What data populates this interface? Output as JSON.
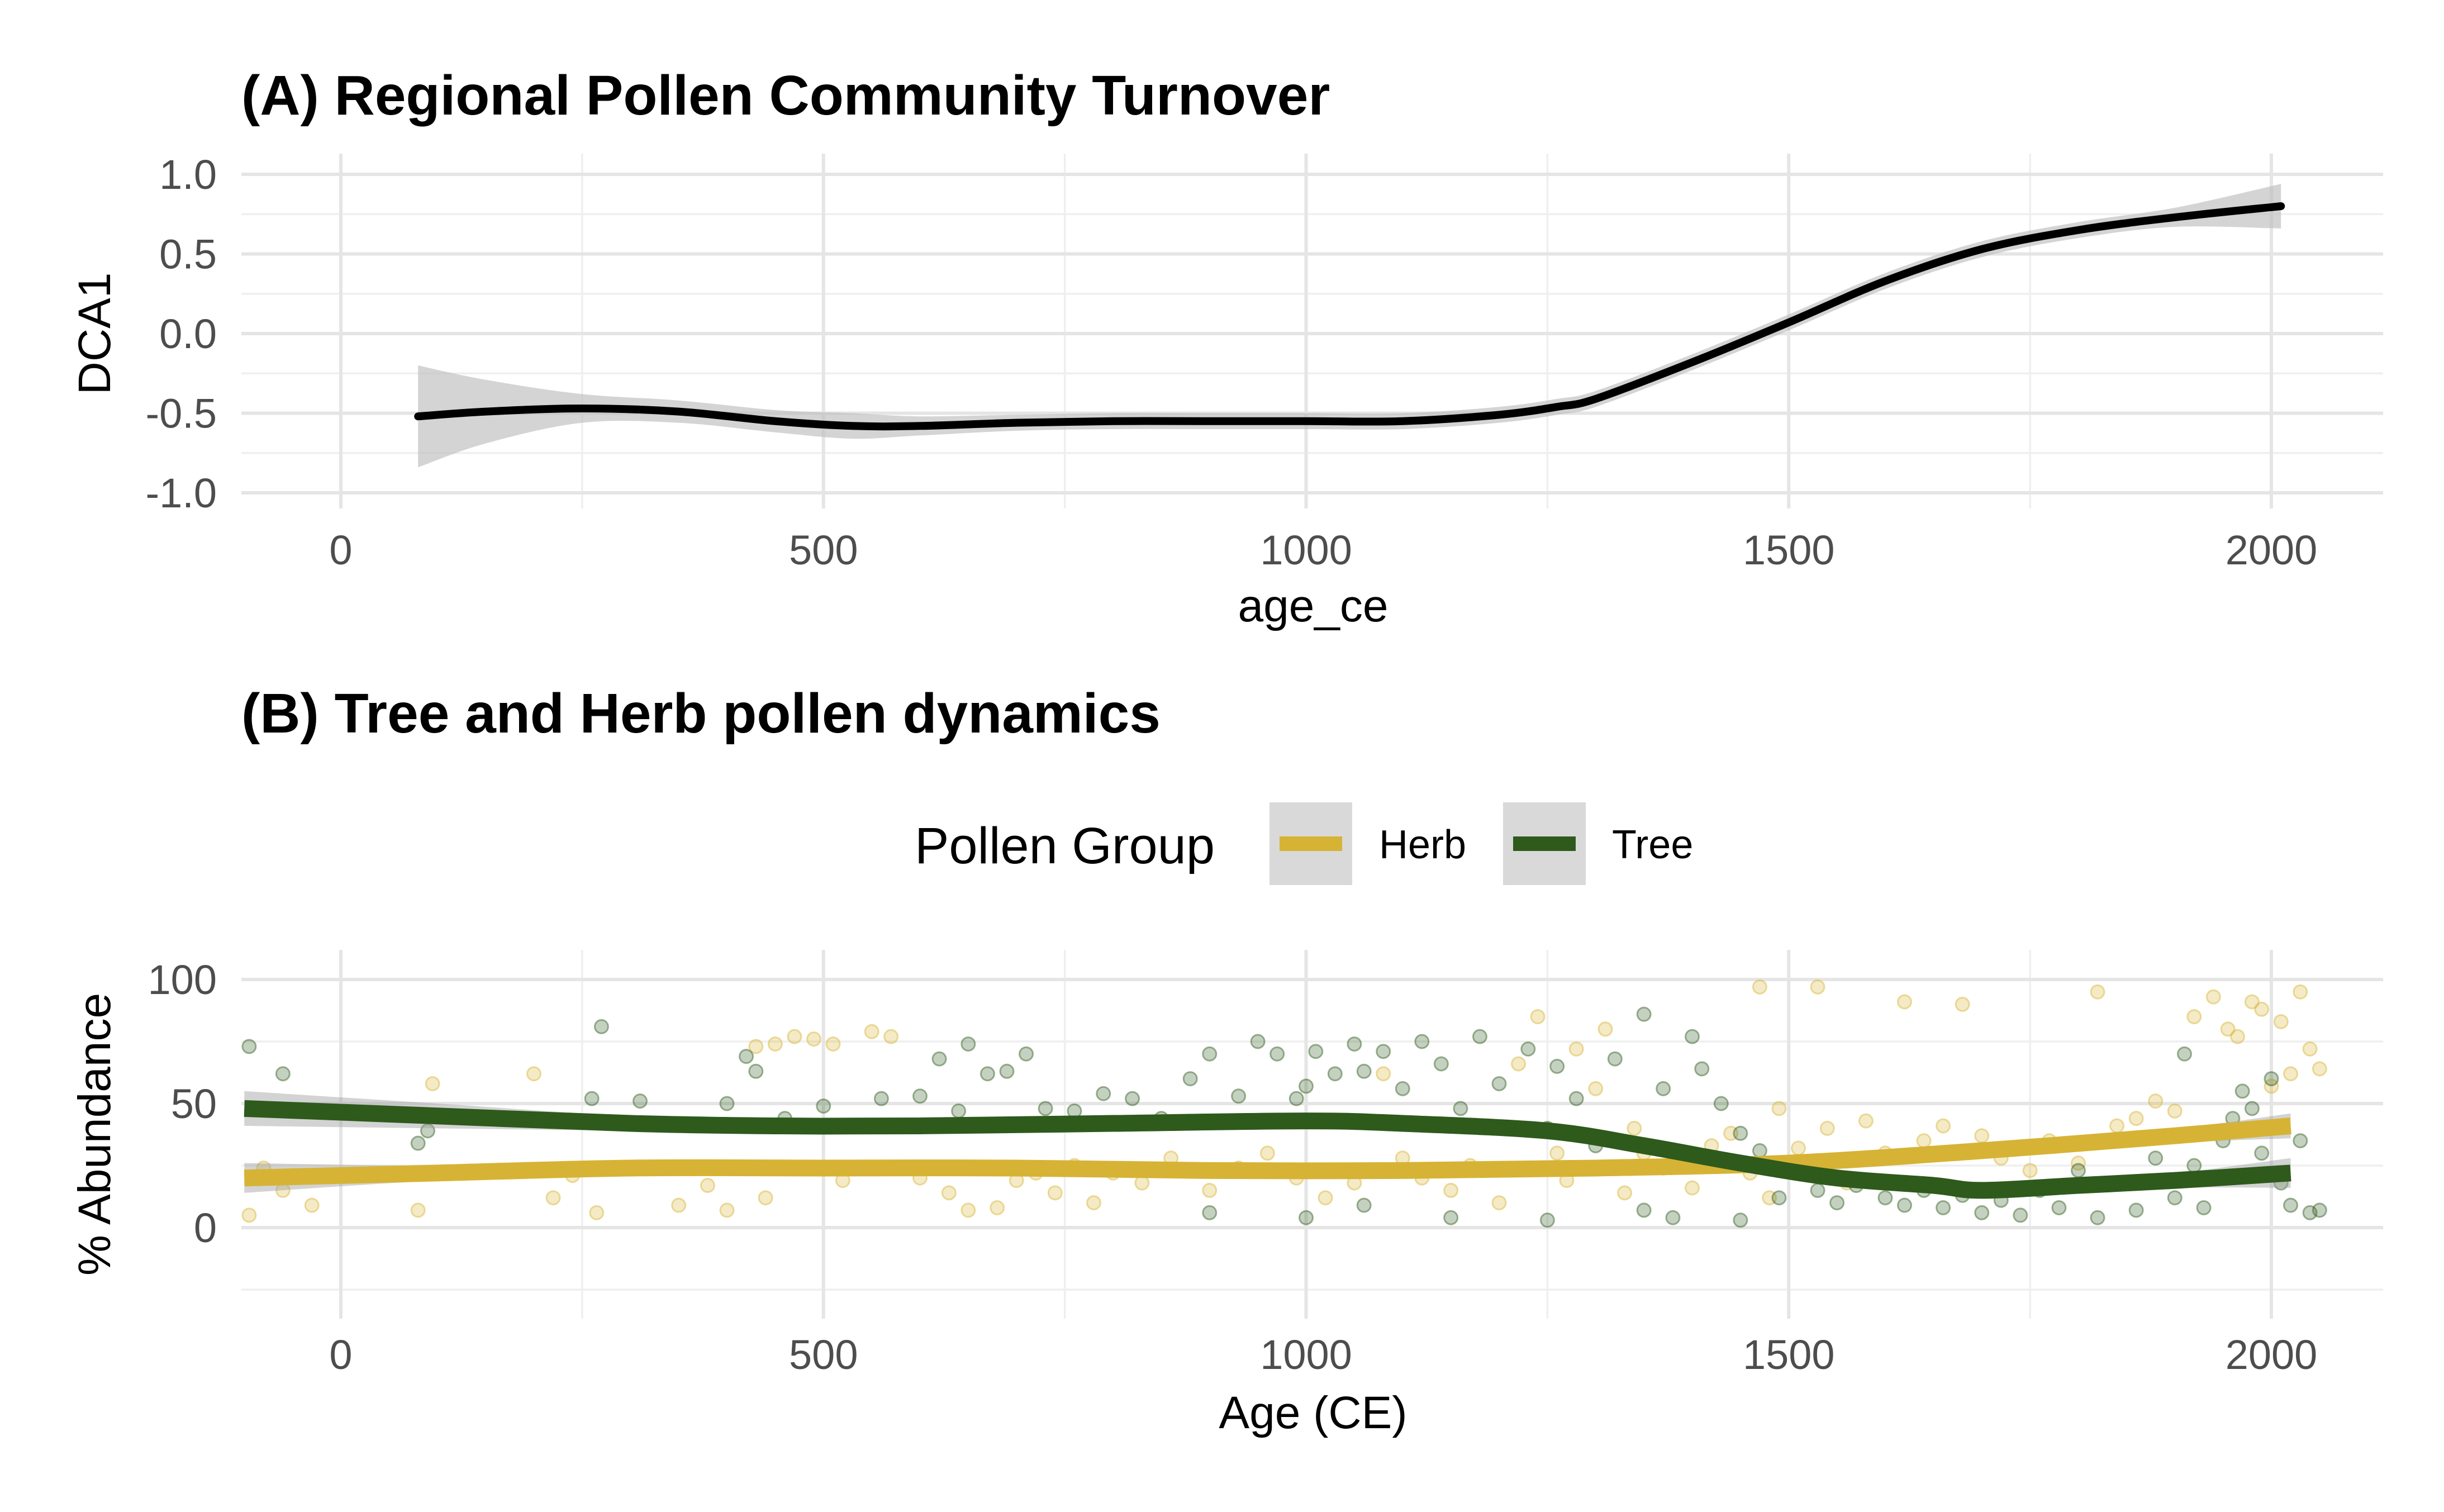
{
  "chart_data": [
    {
      "type": "line",
      "title": "(A) Regional Pollen Community Turnover",
      "xlabel": "age_ce",
      "ylabel": "DCA1",
      "xlim": [
        -100,
        2220
      ],
      "ylim": [
        -1.0,
        1.0
      ],
      "x_ticks": [
        0,
        500,
        1000,
        1500,
        2000
      ],
      "x_tick_labels": [
        "0",
        "500",
        "1000",
        "1500",
        "2000"
      ],
      "y_ticks": [
        1.0,
        0.5,
        0.0,
        -0.5,
        -1.0
      ],
      "y_tick_labels": [
        "1.0",
        "0.5",
        "0.0",
        "-0.5",
        "-1.0"
      ],
      "grid": true,
      "series": [
        {
          "color": "#000000",
          "band_color": "#bdbdbd",
          "x": [
            80,
            150,
            250,
            350,
            450,
            530,
            600,
            700,
            800,
            900,
            1000,
            1100,
            1200,
            1260,
            1300,
            1400,
            1500,
            1600,
            1700,
            1800,
            1900,
            2010
          ],
          "y": [
            -0.52,
            -0.49,
            -0.47,
            -0.49,
            -0.55,
            -0.58,
            -0.58,
            -0.56,
            -0.55,
            -0.55,
            -0.55,
            -0.55,
            -0.51,
            -0.46,
            -0.41,
            -0.18,
            0.07,
            0.33,
            0.53,
            0.65,
            0.73,
            0.8
          ],
          "lo": [
            -0.84,
            -0.69,
            -0.56,
            -0.56,
            -0.62,
            -0.66,
            -0.64,
            -0.61,
            -0.6,
            -0.6,
            -0.6,
            -0.6,
            -0.56,
            -0.51,
            -0.46,
            -0.23,
            0.02,
            0.28,
            0.48,
            0.6,
            0.67,
            0.66
          ],
          "hi": [
            -0.2,
            -0.29,
            -0.38,
            -0.42,
            -0.48,
            -0.5,
            -0.52,
            -0.51,
            -0.5,
            -0.5,
            -0.5,
            -0.5,
            -0.46,
            -0.41,
            -0.36,
            -0.13,
            0.12,
            0.38,
            0.58,
            0.7,
            0.79,
            0.94
          ]
        }
      ]
    },
    {
      "type": "scatter",
      "title": "(B) Tree and Herb pollen dynamics",
      "xlabel": "Age (CE)",
      "ylabel": "% Abundance",
      "xlim": [
        -100,
        2220
      ],
      "ylim": [
        -25,
        105
      ],
      "x_ticks": [
        0,
        500,
        1000,
        1500,
        2000
      ],
      "x_tick_labels": [
        "0",
        "500",
        "1000",
        "1500",
        "2000"
      ],
      "y_ticks": [
        100,
        50,
        0
      ],
      "y_tick_labels": [
        "100",
        "50",
        "0"
      ],
      "grid": true,
      "legend": {
        "title": "Pollen Group",
        "position": "top",
        "entries": [
          "Herb",
          "Tree"
        ]
      },
      "series": [
        {
          "name": "Herb",
          "color": "#d6b334",
          "smooth_x": [
            -100,
            100,
            300,
            500,
            700,
            900,
            1100,
            1300,
            1500,
            1700,
            1900,
            2020
          ],
          "smooth_y": [
            20,
            22,
            24,
            24,
            24,
            23,
            23,
            24,
            26,
            31,
            37,
            41
          ],
          "smooth_lo": [
            14,
            19,
            22,
            22,
            22,
            21,
            21,
            22,
            23,
            28,
            34,
            36
          ],
          "smooth_hi": [
            26,
            25,
            26,
            26,
            26,
            25,
            25,
            26,
            29,
            34,
            40,
            46
          ],
          "points": [
            [
              -95,
              5
            ],
            [
              -80,
              24
            ],
            [
              -60,
              15
            ],
            [
              -30,
              9
            ],
            [
              80,
              7
            ],
            [
              95,
              58
            ],
            [
              200,
              62
            ],
            [
              220,
              12
            ],
            [
              240,
              21
            ],
            [
              255,
              24
            ],
            [
              265,
              6
            ],
            [
              350,
              9
            ],
            [
              380,
              17
            ],
            [
              400,
              7
            ],
            [
              430,
              73
            ],
            [
              440,
              12
            ],
            [
              450,
              74
            ],
            [
              470,
              77
            ],
            [
              490,
              76
            ],
            [
              510,
              74
            ],
            [
              520,
              19
            ],
            [
              550,
              79
            ],
            [
              570,
              77
            ],
            [
              600,
              20
            ],
            [
              630,
              14
            ],
            [
              650,
              7
            ],
            [
              680,
              8
            ],
            [
              700,
              19
            ],
            [
              720,
              22
            ],
            [
              740,
              14
            ],
            [
              760,
              25
            ],
            [
              780,
              10
            ],
            [
              800,
              22
            ],
            [
              830,
              18
            ],
            [
              860,
              28
            ],
            [
              900,
              15
            ],
            [
              930,
              24
            ],
            [
              960,
              30
            ],
            [
              990,
              20
            ],
            [
              1020,
              12
            ],
            [
              1050,
              18
            ],
            [
              1080,
              62
            ],
            [
              1100,
              28
            ],
            [
              1120,
              20
            ],
            [
              1150,
              15
            ],
            [
              1170,
              25
            ],
            [
              1200,
              10
            ],
            [
              1220,
              66
            ],
            [
              1240,
              85
            ],
            [
              1260,
              30
            ],
            [
              1270,
              19
            ],
            [
              1280,
              72
            ],
            [
              1300,
              56
            ],
            [
              1310,
              80
            ],
            [
              1330,
              14
            ],
            [
              1340,
              40
            ],
            [
              1350,
              30
            ],
            [
              1370,
              24
            ],
            [
              1400,
              16
            ],
            [
              1420,
              33
            ],
            [
              1440,
              38
            ],
            [
              1460,
              22
            ],
            [
              1470,
              97
            ],
            [
              1480,
              12
            ],
            [
              1490,
              48
            ],
            [
              1510,
              32
            ],
            [
              1530,
              97
            ],
            [
              1540,
              40
            ],
            [
              1560,
              18
            ],
            [
              1580,
              43
            ],
            [
              1600,
              30
            ],
            [
              1620,
              91
            ],
            [
              1640,
              35
            ],
            [
              1660,
              41
            ],
            [
              1680,
              90
            ],
            [
              1700,
              37
            ],
            [
              1720,
              28
            ],
            [
              1750,
              23
            ],
            [
              1770,
              35
            ],
            [
              1800,
              26
            ],
            [
              1820,
              95
            ],
            [
              1840,
              41
            ],
            [
              1860,
              44
            ],
            [
              1880,
              51
            ],
            [
              1900,
              47
            ],
            [
              1920,
              85
            ],
            [
              1940,
              93
            ],
            [
              1955,
              80
            ],
            [
              1965,
              77
            ],
            [
              1980,
              91
            ],
            [
              1990,
              88
            ],
            [
              2000,
              57
            ],
            [
              2010,
              83
            ],
            [
              2020,
              62
            ],
            [
              2030,
              95
            ],
            [
              2040,
              72
            ],
            [
              2050,
              64
            ]
          ]
        },
        {
          "name": "Tree",
          "color": "#2e5a1c",
          "smooth_x": [
            -100,
            100,
            300,
            450,
            600,
            800,
            1000,
            1100,
            1250,
            1350,
            1450,
            1550,
            1650,
            1700,
            1800,
            1900,
            2020
          ],
          "smooth_y": [
            48,
            45,
            42,
            41,
            41,
            42,
            43,
            42,
            39,
            33,
            26,
            20,
            17,
            15,
            17,
            19,
            22
          ],
          "smooth_lo": [
            41,
            40,
            39,
            38,
            38,
            39,
            40,
            39,
            36,
            30,
            23,
            17,
            14,
            12,
            14,
            16,
            16
          ],
          "smooth_hi": [
            55,
            50,
            45,
            44,
            44,
            45,
            46,
            45,
            42,
            36,
            29,
            23,
            20,
            18,
            20,
            22,
            28
          ],
          "points": [
            [
              -95,
              73
            ],
            [
              -60,
              62
            ],
            [
              80,
              34
            ],
            [
              90,
              39
            ],
            [
              270,
              81
            ],
            [
              260,
              52
            ],
            [
              310,
              51
            ],
            [
              400,
              50
            ],
            [
              420,
              69
            ],
            [
              430,
              63
            ],
            [
              460,
              44
            ],
            [
              500,
              49
            ],
            [
              560,
              52
            ],
            [
              600,
              53
            ],
            [
              620,
              68
            ],
            [
              640,
              47
            ],
            [
              650,
              74
            ],
            [
              670,
              62
            ],
            [
              690,
              63
            ],
            [
              710,
              70
            ],
            [
              730,
              48
            ],
            [
              760,
              47
            ],
            [
              790,
              54
            ],
            [
              820,
              52
            ],
            [
              850,
              44
            ],
            [
              880,
              60
            ],
            [
              900,
              70
            ],
            [
              930,
              53
            ],
            [
              950,
              75
            ],
            [
              970,
              70
            ],
            [
              990,
              52
            ],
            [
              1000,
              57
            ],
            [
              1010,
              71
            ],
            [
              1030,
              62
            ],
            [
              1050,
              74
            ],
            [
              1060,
              63
            ],
            [
              1080,
              71
            ],
            [
              1100,
              56
            ],
            [
              1120,
              75
            ],
            [
              1140,
              66
            ],
            [
              1160,
              48
            ],
            [
              1180,
              77
            ],
            [
              1200,
              58
            ],
            [
              1230,
              72
            ],
            [
              1250,
              40
            ],
            [
              1260,
              65
            ],
            [
              1280,
              52
            ],
            [
              1300,
              33
            ],
            [
              1320,
              68
            ],
            [
              1350,
              86
            ],
            [
              1370,
              56
            ],
            [
              1400,
              77
            ],
            [
              1410,
              64
            ],
            [
              1430,
              50
            ],
            [
              1450,
              38
            ],
            [
              1470,
              31
            ],
            [
              1490,
              12
            ],
            [
              1510,
              22
            ],
            [
              1530,
              15
            ],
            [
              1550,
              10
            ],
            [
              1570,
              17
            ],
            [
              1600,
              12
            ],
            [
              1620,
              9
            ],
            [
              1640,
              15
            ],
            [
              1660,
              8
            ],
            [
              1680,
              13
            ],
            [
              1700,
              6
            ],
            [
              1720,
              11
            ],
            [
              1740,
              5
            ],
            [
              1760,
              15
            ],
            [
              1780,
              8
            ],
            [
              1800,
              23
            ],
            [
              1820,
              4
            ],
            [
              1840,
              18
            ],
            [
              1860,
              7
            ],
            [
              1880,
              28
            ],
            [
              1900,
              12
            ],
            [
              1910,
              70
            ],
            [
              1920,
              25
            ],
            [
              1930,
              8
            ],
            [
              1950,
              35
            ],
            [
              1960,
              44
            ],
            [
              1970,
              55
            ],
            [
              1980,
              48
            ],
            [
              1990,
              30
            ],
            [
              2000,
              60
            ],
            [
              2010,
              18
            ],
            [
              2020,
              9
            ],
            [
              2030,
              35
            ],
            [
              2040,
              6
            ],
            [
              2050,
              7
            ],
            [
              1150,
              4
            ],
            [
              1250,
              3
            ],
            [
              1350,
              7
            ],
            [
              1450,
              3
            ],
            [
              1000,
              4
            ],
            [
              900,
              6
            ],
            [
              1060,
              9
            ],
            [
              1380,
              4
            ]
          ]
        }
      ]
    }
  ]
}
